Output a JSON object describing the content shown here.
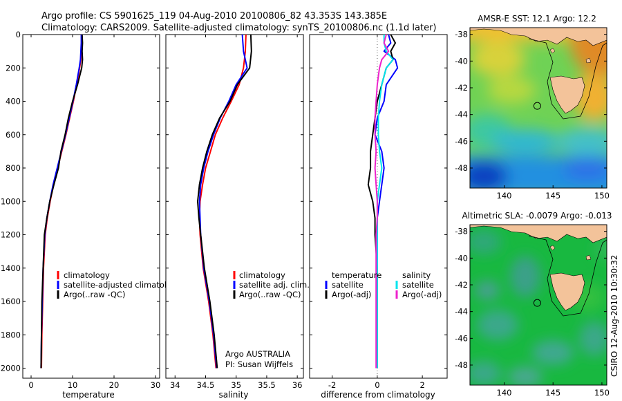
{
  "header": {
    "line1": "Argo profile: CS 5901625_119 04-Aug-2010 20100806_82 43.353S 143.385E",
    "line2": "Climatology: CARS2009. Satellite-adjusted climatology: synTS_20100806.nc (1.1d later)"
  },
  "side_label": "CSIRO 12-Aug-2010 10:30:32",
  "colors": {
    "red": "#ff0000",
    "blue": "#0000ff",
    "black": "#000000",
    "cyan": "#00e5ee",
    "magenta": "#ee22cc",
    "land": "#f3c39a"
  },
  "chart_data": [
    {
      "type": "line",
      "id": "temperature",
      "xlabel": "temperature",
      "ylabel": "",
      "xlim": [
        -2,
        31
      ],
      "ylim": [
        2060,
        0
      ],
      "xticks": [
        0,
        10,
        20,
        30
      ],
      "yticks": [
        0,
        200,
        400,
        600,
        800,
        1000,
        1200,
        1400,
        1600,
        1800,
        2000
      ],
      "legend": {
        "position": "lower-right",
        "entries": [
          "climatology",
          "satellite-adjusted climatology",
          "Argo(..raw -QC)"
        ]
      },
      "series": [
        {
          "name": "climatology",
          "color": "#ff0000",
          "x": [
            12.2,
            12.2,
            12.1,
            12.0,
            11.7,
            11.0,
            10.2,
            9.3,
            8.4,
            7.4,
            6.4,
            5.4,
            4.6,
            3.9,
            3.4,
            3.0,
            2.8,
            2.6,
            2.5
          ],
          "y": [
            0,
            50,
            100,
            150,
            200,
            300,
            400,
            500,
            600,
            700,
            800,
            900,
            1000,
            1100,
            1200,
            1400,
            1600,
            1800,
            2000
          ]
        },
        {
          "name": "satellite-adjusted climatology",
          "color": "#0000ff",
          "x": [
            12.1,
            12.1,
            12.0,
            11.9,
            11.6,
            10.9,
            10.1,
            9.2,
            8.3,
            7.3,
            6.3,
            5.3,
            4.5,
            3.8,
            3.3,
            2.9,
            2.7,
            2.5,
            2.4
          ],
          "y": [
            0,
            50,
            100,
            150,
            200,
            300,
            400,
            500,
            600,
            700,
            800,
            900,
            1000,
            1100,
            1200,
            1400,
            1600,
            1800,
            2000
          ]
        },
        {
          "name": "Argo(..raw -QC)",
          "color": "#000000",
          "x": [
            12.3,
            12.4,
            12.3,
            12.4,
            12.2,
            11.2,
            10.0,
            9.0,
            8.2,
            7.2,
            6.6,
            5.5,
            4.5,
            3.8,
            3.2,
            2.9,
            2.6,
            2.5,
            2.4
          ],
          "y": [
            0,
            50,
            100,
            150,
            200,
            300,
            400,
            500,
            600,
            700,
            800,
            900,
            1000,
            1100,
            1200,
            1400,
            1600,
            1800,
            2000
          ]
        }
      ]
    },
    {
      "type": "line",
      "id": "salinity",
      "xlabel": "salinity",
      "ylabel": "",
      "xlim": [
        33.85,
        36.1
      ],
      "ylim": [
        2060,
        0
      ],
      "xticks": [
        34,
        34.5,
        35,
        35.5,
        36
      ],
      "xticklabels": [
        "34",
        "34.5",
        "35",
        "35.5",
        "36"
      ],
      "yticks": [
        0,
        200,
        400,
        600,
        800,
        1000,
        1200,
        1400,
        1600,
        1800,
        2000
      ],
      "legend": {
        "position": "lower-right",
        "entries": [
          "climatology",
          "satellite adj. clim.",
          "Argo(..raw -QC)"
        ]
      },
      "annotations": [
        "Argo AUSTRALIA",
        "PI: Susan Wijffels"
      ],
      "series": [
        {
          "name": "climatology",
          "color": "#ff0000",
          "x": [
            35.16,
            35.15,
            35.12,
            35.05,
            34.92,
            34.78,
            34.66,
            34.58,
            34.5,
            34.45,
            34.41,
            34.4,
            34.41,
            34.46,
            34.55,
            34.62,
            34.67
          ],
          "y": [
            0,
            100,
            200,
            300,
            400,
            500,
            600,
            700,
            800,
            900,
            1000,
            1100,
            1200,
            1400,
            1600,
            1800,
            2000
          ]
        },
        {
          "name": "satellite adj. clim.",
          "color": "#0000ff",
          "x": [
            35.1,
            35.12,
            35.18,
            35.0,
            34.88,
            34.74,
            34.63,
            34.54,
            34.47,
            34.42,
            34.4,
            34.41,
            34.42,
            34.47,
            34.56,
            34.63,
            34.68
          ],
          "y": [
            0,
            100,
            200,
            300,
            400,
            500,
            600,
            700,
            800,
            900,
            1000,
            1100,
            1200,
            1400,
            1600,
            1800,
            2000
          ]
        },
        {
          "name": "Argo(..raw -QC)",
          "color": "#000000",
          "x": [
            35.24,
            35.25,
            35.22,
            35.02,
            34.9,
            34.73,
            34.61,
            34.52,
            34.45,
            34.4,
            34.37,
            34.39,
            34.42,
            34.48,
            34.57,
            34.64,
            34.69
          ],
          "y": [
            0,
            100,
            200,
            300,
            400,
            500,
            600,
            700,
            800,
            900,
            1000,
            1100,
            1200,
            1400,
            1600,
            1800,
            2000
          ]
        }
      ]
    },
    {
      "type": "line",
      "id": "difference",
      "xlabel": "difference from climatology",
      "ylabel": "",
      "xlim": [
        -3,
        3.1
      ],
      "ylim": [
        2060,
        0
      ],
      "xticks": [
        -2,
        0,
        2
      ],
      "yticks": [
        0,
        200,
        400,
        600,
        800,
        1000,
        1200,
        1400,
        1600,
        1800,
        2000
      ],
      "legend": {
        "position": "lower",
        "groups": [
          {
            "title": "temperature",
            "entries": [
              "satellite",
              "Argo(-adj)"
            ]
          },
          {
            "title": "salinity",
            "entries": [
              "satellite",
              "Argo(-adj)"
            ]
          }
        ]
      },
      "series": [
        {
          "name": "temperature satellite",
          "color": "#0000ff",
          "x": [
            0.5,
            0.6,
            0.3,
            0.8,
            0.9,
            0.4,
            0.3,
            0.0,
            -0.1,
            0.2,
            0.3,
            0.2,
            0.1,
            0.0,
            0.0,
            0.0,
            0.0,
            0.0,
            0.0
          ],
          "y": [
            0,
            50,
            100,
            150,
            200,
            300,
            400,
            500,
            600,
            700,
            800,
            900,
            1000,
            1100,
            1200,
            1400,
            1600,
            1800,
            2000
          ]
        },
        {
          "name": "temperature Argo(-adj)",
          "color": "#000000",
          "x": [
            0.6,
            0.8,
            0.6,
            0.7,
            0.4,
            0.2,
            0.0,
            -0.1,
            -0.2,
            -0.3,
            -0.3,
            -0.4,
            -0.2,
            -0.1,
            -0.1,
            0.0,
            0.0,
            0.0,
            0.0
          ],
          "y": [
            0,
            50,
            100,
            150,
            200,
            300,
            400,
            500,
            600,
            700,
            800,
            900,
            1000,
            1100,
            1200,
            1400,
            1600,
            1800,
            2000
          ]
        },
        {
          "name": "salinity satellite",
          "color": "#00e5ee",
          "x": [
            0.3,
            0.3,
            0.4,
            0.7,
            0.4,
            0.2,
            0.1,
            0.05,
            0.05,
            0.1,
            0.2,
            0.1,
            0.0,
            0.0,
            0.0,
            0.0,
            0.0,
            0.0,
            0.0
          ],
          "y": [
            0,
            50,
            100,
            150,
            200,
            300,
            400,
            500,
            600,
            700,
            800,
            900,
            1000,
            1100,
            1200,
            1400,
            1600,
            1800,
            2000
          ]
        },
        {
          "name": "salinity Argo(-adj)",
          "color": "#ee22cc",
          "x": [
            0.4,
            0.3,
            0.5,
            0.2,
            0.1,
            0.0,
            -0.05,
            -0.1,
            -0.1,
            -0.05,
            -0.1,
            -0.05,
            0.0,
            0.0,
            -0.05,
            -0.05,
            -0.05,
            -0.05,
            -0.05
          ],
          "y": [
            0,
            50,
            100,
            150,
            200,
            300,
            400,
            500,
            600,
            700,
            800,
            900,
            1000,
            1100,
            1200,
            1400,
            1600,
            1800,
            2000
          ]
        }
      ]
    },
    {
      "type": "heatmap",
      "id": "sst-map",
      "title": "AMSR-E SST: 12.1  Argo: 12.2",
      "xlim": [
        136.5,
        150.5
      ],
      "ylim": [
        -49.5,
        -37.5
      ],
      "xticks": [
        140,
        145,
        150
      ],
      "yticks": [
        -38,
        -40,
        -42,
        -44,
        -46,
        -48
      ],
      "marker": {
        "lon": 143.385,
        "lat": -43.353
      }
    },
    {
      "type": "heatmap",
      "id": "sla-map",
      "title": "Altimetric SLA: -0.0079  Argo: -0.013",
      "xlim": [
        136.5,
        150.5
      ],
      "ylim": [
        -49.5,
        -37.5
      ],
      "xticks": [
        140,
        145,
        150
      ],
      "yticks": [
        -38,
        -40,
        -42,
        -44,
        -46,
        -48
      ],
      "marker": {
        "lon": 143.385,
        "lat": -43.353
      }
    }
  ]
}
